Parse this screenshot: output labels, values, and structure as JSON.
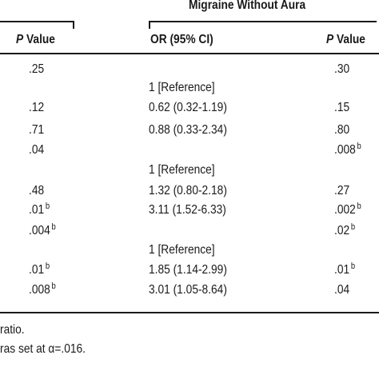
{
  "header": {
    "group_title": "Migraine Without Aura",
    "col_pvalue_left_p": "P",
    "col_pvalue_left_rest": " Value",
    "col_or": "OR (95% CI)",
    "col_pvalue_right_p": "P",
    "col_pvalue_right_rest": " Value"
  },
  "rows": [
    {
      "p_left": ".25",
      "p_left_sup": "",
      "or": "",
      "p_right": ".30",
      "p_right_sup": ""
    },
    {
      "p_left": "",
      "p_left_sup": "",
      "or": "1 [Reference]",
      "p_right": "",
      "p_right_sup": ""
    },
    {
      "p_left": ".12",
      "p_left_sup": "",
      "or": "0.62 (0.32-1.19)",
      "p_right": ".15",
      "p_right_sup": ""
    },
    {
      "p_left": ".71",
      "p_left_sup": "",
      "or": "0.88 (0.33-2.34)",
      "p_right": ".80",
      "p_right_sup": ""
    },
    {
      "p_left": ".04",
      "p_left_sup": "",
      "or": "",
      "p_right": ".008",
      "p_right_sup": "b"
    },
    {
      "p_left": "",
      "p_left_sup": "",
      "or": "1 [Reference]",
      "p_right": "",
      "p_right_sup": ""
    },
    {
      "p_left": ".48",
      "p_left_sup": "",
      "or": "1.32 (0.80-2.18)",
      "p_right": ".27",
      "p_right_sup": ""
    },
    {
      "p_left": ".01",
      "p_left_sup": "b",
      "or": "3.11 (1.52-6.33)",
      "p_right": ".002",
      "p_right_sup": "b"
    },
    {
      "p_left": ".004",
      "p_left_sup": "b",
      "or": "",
      "p_right": ".02",
      "p_right_sup": "b"
    },
    {
      "p_left": "",
      "p_left_sup": "",
      "or": "1 [Reference]",
      "p_right": "",
      "p_right_sup": ""
    },
    {
      "p_left": ".01",
      "p_left_sup": "b",
      "or": "1.85 (1.14-2.99)",
      "p_right": ".01",
      "p_right_sup": "b"
    },
    {
      "p_left": ".008",
      "p_left_sup": "b",
      "or": "3.01 (1.05-8.64)",
      "p_right": ".04",
      "p_right_sup": ""
    }
  ],
  "footnotes": {
    "line1": "ratio.",
    "line2": "ras set at α=.016."
  }
}
